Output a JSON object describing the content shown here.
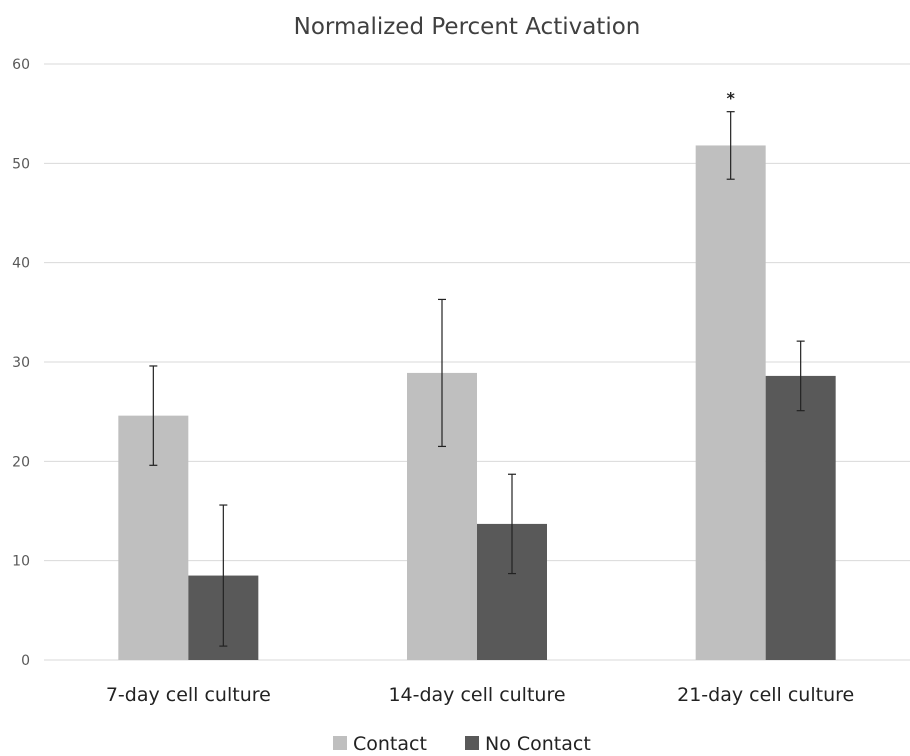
{
  "chart_data": {
    "type": "bar",
    "title": "Normalized Percent Activation",
    "categories": [
      "7-day cell culture",
      "14-day cell culture",
      "21-day cell culture"
    ],
    "series": [
      {
        "name": "Contact",
        "color": "#bfbfbf",
        "values": [
          24.6,
          28.9,
          51.8
        ],
        "error": [
          5.0,
          7.4,
          3.4
        ]
      },
      {
        "name": "No Contact",
        "color": "#595959",
        "values": [
          8.5,
          13.7,
          28.6
        ],
        "error": [
          7.1,
          5.0,
          3.5
        ]
      }
    ],
    "ylim": [
      0,
      60
    ],
    "yticks": [
      "0",
      "10",
      "20",
      "30",
      "40",
      "50",
      "60"
    ],
    "grid": true,
    "legend_position": "bottom",
    "annotations": [
      {
        "text": "*",
        "category": 2,
        "series": 0
      }
    ]
  }
}
